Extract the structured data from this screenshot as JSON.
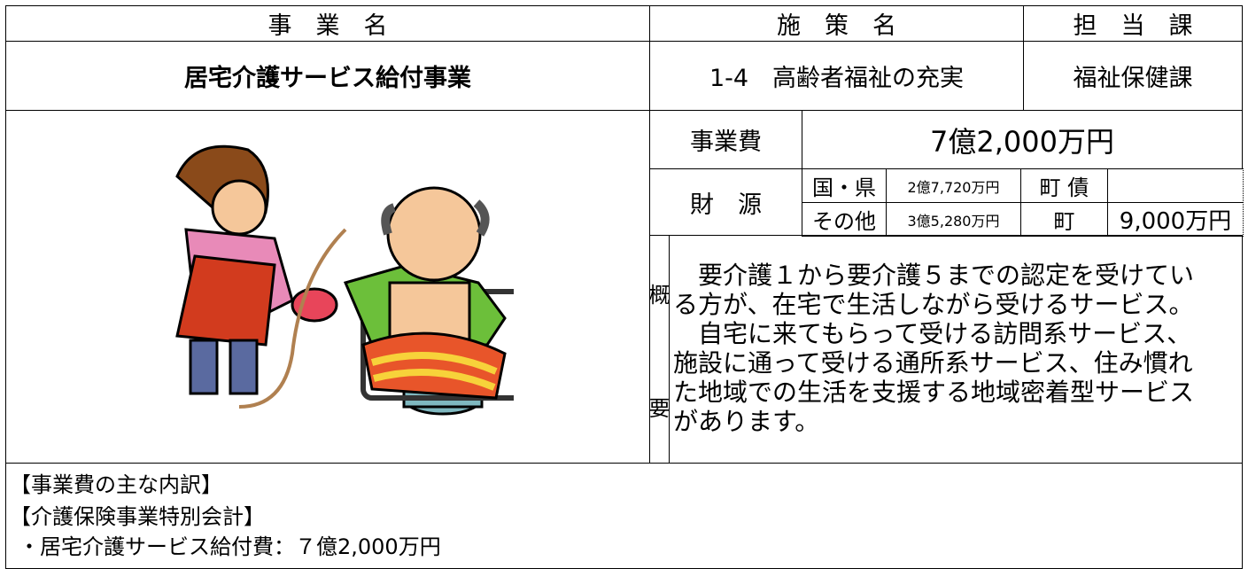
{
  "header": {
    "project_label": "事　業　名",
    "policy_label": "施　策　名",
    "section_label": "担　当　課"
  },
  "project": {
    "name": "居宅介護サービス給付事業",
    "policy": "1-4　高齢者福祉の充実",
    "section": "福祉保健課"
  },
  "cost": {
    "label": "事業費",
    "value": "7億2,000万円"
  },
  "funding": {
    "label": "財　源",
    "rows": [
      [
        "国・県",
        "2億7,720万円",
        "町 債",
        ""
      ],
      [
        "その他",
        "3億5,280万円",
        "町",
        "9,000万円"
      ]
    ]
  },
  "summary": {
    "label_top": "概",
    "label_bottom": "要",
    "lines": [
      "　要介護１から要介護５までの認定を受けてい",
      "る方が、在宅で生活しながら受けるサービス。",
      "　自宅に来てもらって受ける訪問系サービス、",
      "施設に通って受ける通所系サービス、住み慣れ",
      "た地域での生活を支援する地域密着型サービス",
      "があります。"
    ]
  },
  "breakdown": {
    "title": "【事業費の主な内訳】",
    "account": "【介護保険事業特別会計】",
    "item": "・居宅介護サービス給付費：７億2,000万円"
  }
}
